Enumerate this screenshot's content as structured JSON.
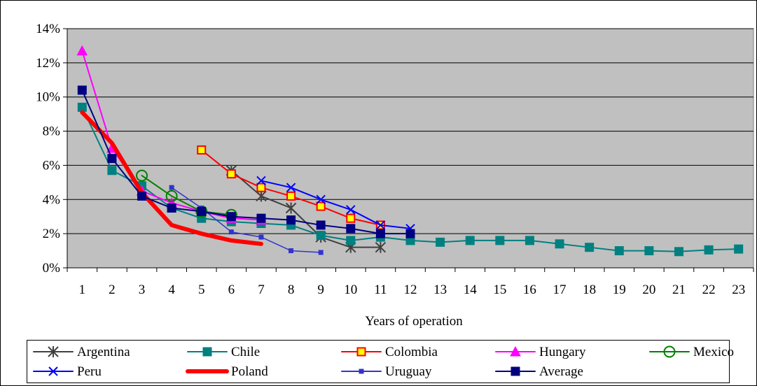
{
  "chart_data": {
    "type": "line",
    "title": "",
    "xlabel": "Years of operation",
    "ylabel": "",
    "x_categories": [
      "1",
      "2",
      "3",
      "4",
      "5",
      "6",
      "7",
      "8",
      "9",
      "10",
      "11",
      "12",
      "13",
      "14",
      "15",
      "16",
      "17",
      "18",
      "19",
      "20",
      "21",
      "22",
      "23"
    ],
    "y_ticks": [
      "0%",
      "2%",
      "4%",
      "6%",
      "8%",
      "10%",
      "12%",
      "14%"
    ],
    "ylim": [
      0,
      14
    ],
    "grid": "horizontal",
    "plot_background": "#c0c0c0",
    "legend_position": "bottom",
    "series": [
      {
        "name": "Argentina",
        "color": "#404040",
        "marker": "asterisk",
        "start_year": 6,
        "values": [
          5.7,
          4.2,
          3.5,
          1.8,
          1.2,
          1.2
        ]
      },
      {
        "name": "Chile",
        "color": "#008080",
        "marker": "square",
        "start_year": 1,
        "values": [
          9.4,
          5.7,
          4.8,
          3.5,
          2.9,
          2.7,
          2.6,
          2.5,
          1.9,
          1.6,
          1.8,
          1.6,
          1.5,
          1.6,
          1.6,
          1.6,
          1.4,
          1.2,
          1.0,
          1.0,
          0.95,
          1.05,
          1.1
        ]
      },
      {
        "name": "Colombia",
        "color": "#ff0000",
        "marker": "square-yellow",
        "start_year": 5,
        "values": [
          6.9,
          5.5,
          4.7,
          4.2,
          3.6,
          2.9,
          2.5
        ]
      },
      {
        "name": "Hungary",
        "color": "#ff00ff",
        "marker": "triangle",
        "start_year": 1,
        "values": [
          12.7,
          7.0,
          4.5,
          3.8,
          3.3,
          2.9,
          2.8
        ]
      },
      {
        "name": "Mexico",
        "color": "#008000",
        "marker": "circle",
        "start_year": 3,
        "values": [
          5.4,
          4.2,
          3.3,
          3.1
        ]
      },
      {
        "name": "Peru",
        "color": "#0000ff",
        "marker": "x",
        "start_year": 7,
        "values": [
          5.1,
          4.7,
          4.0,
          3.4,
          2.5,
          2.3
        ]
      },
      {
        "name": "Poland",
        "color": "#ff0000",
        "marker": "none",
        "start_year": 1,
        "values": [
          9.1,
          7.3,
          4.4,
          2.5,
          2.0,
          1.6,
          1.4
        ]
      },
      {
        "name": "Uruguay",
        "color": "#3333cc",
        "marker": "small-square",
        "start_year": 4,
        "values": [
          4.7,
          3.5,
          2.1,
          1.8,
          1.0,
          0.9
        ]
      },
      {
        "name": "Average",
        "color": "#000080",
        "marker": "square",
        "start_year": 1,
        "values": [
          10.4,
          6.4,
          4.2,
          3.5,
          3.3,
          3.0,
          2.9,
          2.8,
          2.5,
          2.3,
          2.0,
          2.0
        ]
      }
    ]
  }
}
